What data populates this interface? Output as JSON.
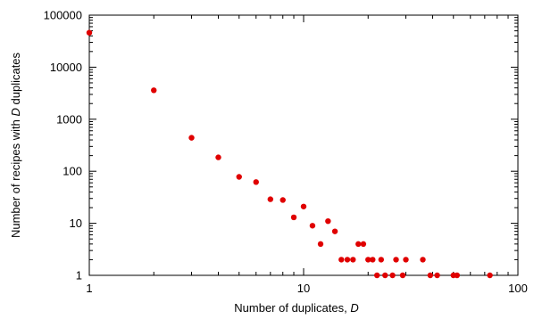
{
  "chart_data": {
    "type": "scatter",
    "title": "",
    "xlabel": "Number of duplicates, ",
    "xlabel_var": "D",
    "ylabel_pre": "Number of recipes with ",
    "ylabel_var": "D",
    "ylabel_post": " duplicates",
    "xscale": "log",
    "yscale": "log",
    "xlim": [
      1,
      100
    ],
    "ylim": [
      1,
      100000
    ],
    "x_ticks": [
      {
        "value": 1,
        "label": "1"
      },
      {
        "value": 10,
        "label": "10"
      },
      {
        "value": 100,
        "label": "100"
      }
    ],
    "y_ticks": [
      {
        "value": 1,
        "label": "1"
      },
      {
        "value": 10,
        "label": "10"
      },
      {
        "value": 100,
        "label": "100"
      },
      {
        "value": 1000,
        "label": "1000"
      },
      {
        "value": 10000,
        "label": "10000"
      },
      {
        "value": 100000,
        "label": "100000"
      }
    ],
    "grid": false,
    "legend": "none",
    "marker_color": "#e00000",
    "points": [
      {
        "x": 1,
        "y": 46000
      },
      {
        "x": 2,
        "y": 3600
      },
      {
        "x": 3,
        "y": 440
      },
      {
        "x": 4,
        "y": 185
      },
      {
        "x": 5,
        "y": 78
      },
      {
        "x": 6,
        "y": 62
      },
      {
        "x": 7,
        "y": 29
      },
      {
        "x": 8,
        "y": 28
      },
      {
        "x": 9,
        "y": 13
      },
      {
        "x": 10,
        "y": 21
      },
      {
        "x": 11,
        "y": 9
      },
      {
        "x": 12,
        "y": 4
      },
      {
        "x": 13,
        "y": 11
      },
      {
        "x": 14,
        "y": 7
      },
      {
        "x": 15,
        "y": 2
      },
      {
        "x": 16,
        "y": 2
      },
      {
        "x": 17,
        "y": 2
      },
      {
        "x": 18,
        "y": 4
      },
      {
        "x": 19,
        "y": 4
      },
      {
        "x": 20,
        "y": 2
      },
      {
        "x": 21,
        "y": 2
      },
      {
        "x": 22,
        "y": 1
      },
      {
        "x": 23,
        "y": 2
      },
      {
        "x": 24,
        "y": 1
      },
      {
        "x": 26,
        "y": 1
      },
      {
        "x": 27,
        "y": 2
      },
      {
        "x": 29,
        "y": 1
      },
      {
        "x": 30,
        "y": 2
      },
      {
        "x": 36,
        "y": 2
      },
      {
        "x": 39,
        "y": 1
      },
      {
        "x": 42,
        "y": 1
      },
      {
        "x": 50,
        "y": 1
      },
      {
        "x": 52,
        "y": 1
      },
      {
        "x": 74,
        "y": 1
      }
    ]
  }
}
